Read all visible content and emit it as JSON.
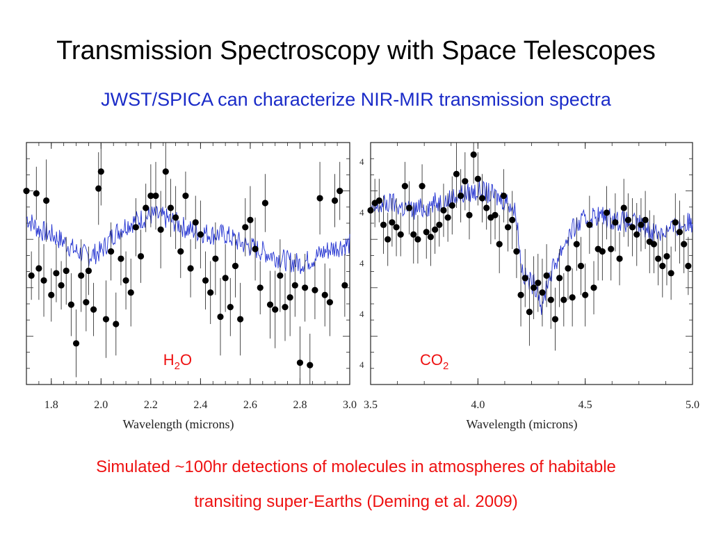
{
  "slide": {
    "title": "Transmission Spectroscopy with Space Telescopes",
    "subtitle": "JWST/SPICA can characterize NIR-MIR transmission spectra",
    "caption_line1": "Simulated ~100hr detections of molecules in atmospheres of habitable",
    "caption_line2": "transiting super-Earths (Deming et al. 2009)"
  },
  "colors": {
    "model": "#1f2fd0",
    "points": "#000000",
    "label": "#ee1111",
    "subtitle": "#1a2bc8",
    "caption": "#ee1111"
  },
  "chart_data": [
    {
      "type": "scatter",
      "panel": "left",
      "xlabel": "Wavelength (microns)",
      "ylabel": "",
      "xlim": [
        1.7,
        3.0
      ],
      "ylim": [
        0,
        1
      ],
      "x_ticks": [
        1.8,
        2.0,
        2.2,
        2.4,
        2.6,
        2.8,
        3.0
      ],
      "x_tick_labels": [
        "1.8",
        "2.0",
        "2.2",
        "2.4",
        "2.6",
        "2.8",
        "3.0"
      ],
      "y_tick_labels": [],
      "molecule_label": {
        "main": "H",
        "sub": "2",
        "tail": "O",
        "x": 2.25,
        "y": 0.08
      },
      "series": [
        {
          "kind": "model",
          "x": [
            1.7,
            1.75,
            1.8,
            1.85,
            1.9,
            1.95,
            2.0,
            2.05,
            2.1,
            2.15,
            2.2,
            2.25,
            2.3,
            2.35,
            2.4,
            2.45,
            2.5,
            2.55,
            2.6,
            2.65,
            2.7,
            2.75,
            2.8,
            2.85,
            2.9,
            2.95,
            3.0
          ],
          "y": [
            0.69,
            0.64,
            0.62,
            0.59,
            0.55,
            0.53,
            0.55,
            0.62,
            0.66,
            0.68,
            0.7,
            0.69,
            0.67,
            0.64,
            0.63,
            0.62,
            0.62,
            0.59,
            0.57,
            0.55,
            0.53,
            0.51,
            0.5,
            0.52,
            0.55,
            0.57,
            0.58
          ]
        },
        {
          "kind": "points",
          "x": [
            1.7,
            1.72,
            1.74,
            1.75,
            1.77,
            1.78,
            1.8,
            1.82,
            1.84,
            1.86,
            1.88,
            1.9,
            1.92,
            1.94,
            1.95,
            1.97,
            1.99,
            2.0,
            2.02,
            2.04,
            2.06,
            2.08,
            2.1,
            2.12,
            2.14,
            2.16,
            2.18,
            2.2,
            2.22,
            2.24,
            2.26,
            2.28,
            2.3,
            2.32,
            2.34,
            2.36,
            2.38,
            2.4,
            2.42,
            2.44,
            2.46,
            2.48,
            2.5,
            2.52,
            2.54,
            2.56,
            2.58,
            2.6,
            2.62,
            2.64,
            2.66,
            2.68,
            2.7,
            2.72,
            2.74,
            2.76,
            2.78,
            2.8,
            2.82,
            2.84,
            2.86,
            2.88,
            2.9,
            2.92,
            2.94,
            2.96,
            2.98
          ],
          "y": [
            0.8,
            0.45,
            0.79,
            0.48,
            0.43,
            0.76,
            0.37,
            0.46,
            0.41,
            0.47,
            0.33,
            0.17,
            0.45,
            0.34,
            0.47,
            0.31,
            0.81,
            0.88,
            0.27,
            0.55,
            0.25,
            0.52,
            0.43,
            0.38,
            0.65,
            0.53,
            0.73,
            0.78,
            0.78,
            0.64,
            0.88,
            0.73,
            0.69,
            0.55,
            0.78,
            0.48,
            0.67,
            0.62,
            0.43,
            0.38,
            0.52,
            0.28,
            0.44,
            0.32,
            0.49,
            0.27,
            0.65,
            0.68,
            0.56,
            0.4,
            0.75,
            0.33,
            0.31,
            0.45,
            0.32,
            0.36,
            0.41,
            0.09,
            0.4,
            0.08,
            0.39,
            0.77,
            0.37,
            0.34,
            0.76,
            0.8,
            0.41
          ],
          "err": [
            0.08,
            0.1,
            0.11,
            0.13,
            0.15,
            0.17,
            0.11,
            0.12,
            0.1,
            0.14,
            0.13,
            0.14,
            0.15,
            0.12,
            0.1,
            0.11,
            0.15,
            0.14,
            0.16,
            0.12,
            0.13,
            0.11,
            0.12,
            0.14,
            0.12,
            0.11,
            0.1,
            0.13,
            0.14,
            0.16,
            0.15,
            0.12,
            0.13,
            0.11,
            0.1,
            0.12,
            0.11,
            0.14,
            0.12,
            0.13,
            0.15,
            0.16,
            0.14,
            0.12,
            0.13,
            0.15,
            0.12,
            0.14,
            0.13,
            0.11,
            0.12,
            0.14,
            0.16,
            0.15,
            0.14,
            0.16,
            0.13,
            0.15,
            0.14,
            0.13,
            0.12,
            0.15,
            0.13,
            0.14,
            0.11,
            0.12,
            0.13
          ]
        }
      ]
    },
    {
      "type": "scatter",
      "panel": "right",
      "xlabel": "Wavelength (microns)",
      "ylabel": "",
      "xlim": [
        3.5,
        5.0
      ],
      "ylim": [
        0,
        1
      ],
      "x_ticks": [
        3.5,
        4.0,
        4.5,
        5.0
      ],
      "x_tick_labels": [
        "3.5",
        "4.0",
        "4.5",
        "5.0"
      ],
      "y_tick_labels": [
        "4",
        "4",
        "4",
        "4",
        "4"
      ],
      "molecule_label": {
        "main": "CO",
        "sub": "2",
        "tail": "",
        "x": 3.73,
        "y": 0.08
      },
      "series": [
        {
          "kind": "model",
          "x": [
            3.5,
            3.55,
            3.6,
            3.65,
            3.7,
            3.75,
            3.8,
            3.85,
            3.9,
            3.95,
            4.0,
            4.05,
            4.1,
            4.15,
            4.18,
            4.2,
            4.22,
            4.25,
            4.28,
            4.3,
            4.32,
            4.35,
            4.4,
            4.45,
            4.5,
            4.55,
            4.6,
            4.65,
            4.7,
            4.75,
            4.8,
            4.85,
            4.9,
            4.95,
            5.0
          ],
          "y": [
            0.71,
            0.74,
            0.75,
            0.73,
            0.72,
            0.73,
            0.75,
            0.76,
            0.78,
            0.79,
            0.8,
            0.79,
            0.77,
            0.75,
            0.7,
            0.5,
            0.44,
            0.42,
            0.4,
            0.3,
            0.42,
            0.48,
            0.58,
            0.65,
            0.68,
            0.7,
            0.69,
            0.68,
            0.67,
            0.66,
            0.64,
            0.63,
            0.64,
            0.66,
            0.67
          ]
        },
        {
          "kind": "points",
          "x": [
            3.5,
            3.52,
            3.54,
            3.56,
            3.58,
            3.6,
            3.62,
            3.64,
            3.66,
            3.68,
            3.7,
            3.72,
            3.74,
            3.76,
            3.78,
            3.8,
            3.82,
            3.84,
            3.86,
            3.88,
            3.9,
            3.92,
            3.94,
            3.96,
            3.98,
            4.0,
            4.02,
            4.04,
            4.06,
            4.08,
            4.1,
            4.12,
            4.14,
            4.16,
            4.18,
            4.2,
            4.22,
            4.24,
            4.26,
            4.28,
            4.3,
            4.32,
            4.34,
            4.36,
            4.38,
            4.4,
            4.42,
            4.44,
            4.46,
            4.48,
            4.5,
            4.52,
            4.54,
            4.56,
            4.58,
            4.6,
            4.62,
            4.64,
            4.66,
            4.68,
            4.7,
            4.72,
            4.74,
            4.76,
            4.78,
            4.8,
            4.82,
            4.84,
            4.86,
            4.88,
            4.9,
            4.92,
            4.94,
            4.96,
            4.98
          ],
          "y": [
            0.72,
            0.75,
            0.76,
            0.66,
            0.6,
            0.67,
            0.65,
            0.62,
            0.82,
            0.73,
            0.62,
            0.6,
            0.82,
            0.63,
            0.61,
            0.64,
            0.66,
            0.72,
            0.69,
            0.74,
            0.87,
            0.78,
            0.84,
            0.7,
            0.95,
            0.85,
            0.77,
            0.73,
            0.69,
            0.7,
            0.58,
            0.78,
            0.65,
            0.68,
            0.55,
            0.37,
            0.44,
            0.3,
            0.4,
            0.42,
            0.38,
            0.45,
            0.35,
            0.27,
            0.44,
            0.35,
            0.48,
            0.36,
            0.58,
            0.49,
            0.37,
            0.66,
            0.4,
            0.56,
            0.55,
            0.71,
            0.56,
            0.67,
            0.52,
            0.73,
            0.68,
            0.65,
            0.62,
            0.66,
            0.68,
            0.59,
            0.58,
            0.52,
            0.49,
            0.53,
            0.46,
            0.67,
            0.63,
            0.58,
            0.49
          ],
          "err": [
            0.08,
            0.1,
            0.09,
            0.12,
            0.11,
            0.1,
            0.12,
            0.09,
            0.1,
            0.11,
            0.12,
            0.1,
            0.09,
            0.11,
            0.12,
            0.1,
            0.09,
            0.11,
            0.1,
            0.12,
            0.14,
            0.11,
            0.12,
            0.1,
            0.12,
            0.11,
            0.1,
            0.09,
            0.11,
            0.1,
            0.12,
            0.11,
            0.1,
            0.12,
            0.11,
            0.13,
            0.12,
            0.14,
            0.13,
            0.12,
            0.14,
            0.13,
            0.12,
            0.13,
            0.12,
            0.11,
            0.13,
            0.12,
            0.11,
            0.12,
            0.13,
            0.12,
            0.11,
            0.13,
            0.12,
            0.11,
            0.13,
            0.12,
            0.11,
            0.12,
            0.11,
            0.12,
            0.13,
            0.11,
            0.12,
            0.13,
            0.12,
            0.11,
            0.13,
            0.12,
            0.11,
            0.12,
            0.13,
            0.12,
            0.12
          ]
        }
      ]
    }
  ]
}
